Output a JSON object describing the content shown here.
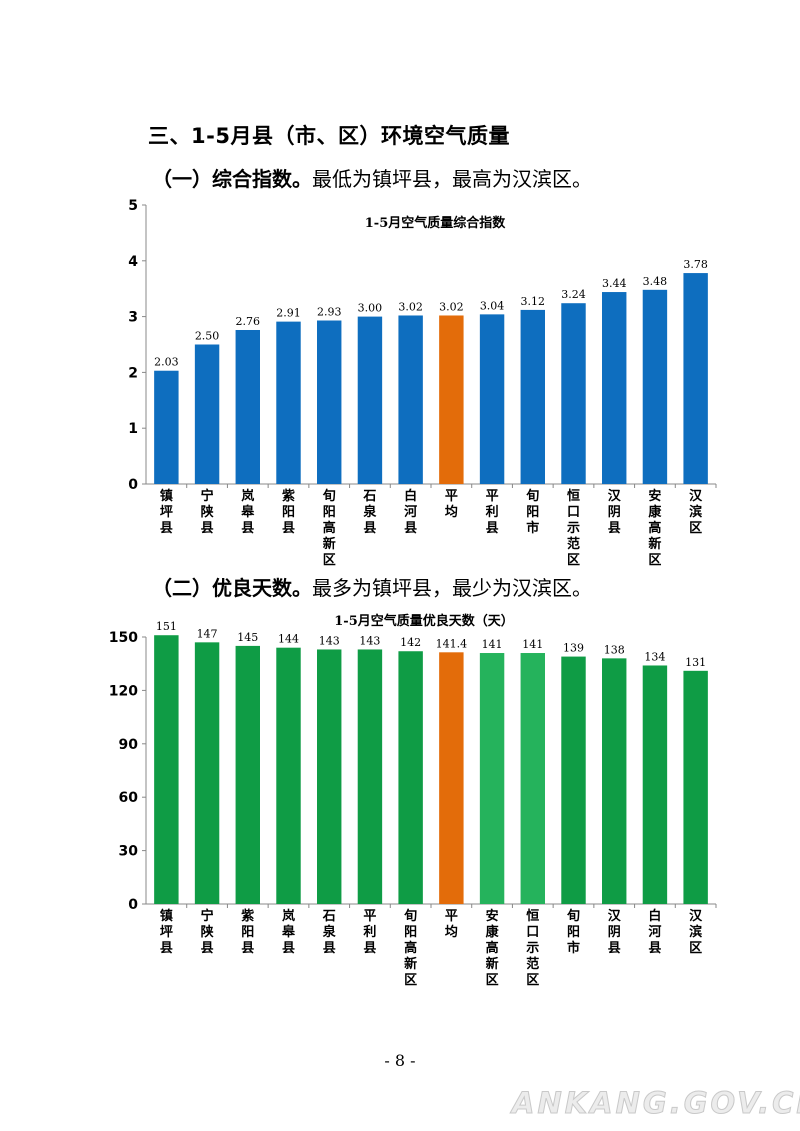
{
  "section_heading": "三、1-5月县（市、区）环境空气质量",
  "para1": {
    "bold": "（一）综合指数。",
    "text": "最低为镇坪县，最高为汉滨区。"
  },
  "para2": {
    "bold": "（二）优良天数。",
    "text": "最多为镇坪县，最少为汉滨区。"
  },
  "page_number": "- 8 -",
  "watermark": "ANKANG.GOV.CN",
  "colors": {
    "blue": "#0e6ebf",
    "orange": "#e36c0a",
    "green": "#0f9c45",
    "light_green": "#25b35c"
  },
  "chart_data": [
    {
      "type": "bar",
      "title": "1-5月空气质量综合指数",
      "categories": [
        "镇坪县",
        "宁陕县",
        "岚皋县",
        "紫阳县",
        "旬阳高新区",
        "石泉县",
        "白河县",
        "平均",
        "平利县",
        "旬阳市",
        "恒口示范区",
        "汉阴县",
        "安康高新区",
        "汉滨区"
      ],
      "values": [
        2.03,
        2.5,
        2.76,
        2.91,
        2.93,
        3.0,
        3.02,
        3.02,
        3.04,
        3.12,
        3.24,
        3.44,
        3.48,
        3.78
      ],
      "value_labels": [
        "2.03",
        "2.50",
        "2.76",
        "2.91",
        "2.93",
        "3.00",
        "3.02",
        "3.02",
        "3.04",
        "3.12",
        "3.24",
        "3.44",
        "3.48",
        "3.78"
      ],
      "ylim": [
        0,
        5
      ],
      "yticks": [
        "0",
        "1",
        "2",
        "3",
        "4",
        "5"
      ],
      "highlight": "平均",
      "bar_color": "#0e6ebf",
      "highlight_color": "#e36c0a",
      "grid": false
    },
    {
      "type": "bar",
      "title": "1-5月空气质量优良天数（天）",
      "categories": [
        "镇坪县",
        "宁陕县",
        "紫阳县",
        "岚皋县",
        "石泉县",
        "平利县",
        "旬阳高新区",
        "平均",
        "安康高新区",
        "恒口示范区",
        "旬阳市",
        "汉阴县",
        "白河县",
        "汉滨区"
      ],
      "values": [
        151,
        147,
        145,
        144,
        143,
        143,
        142,
        141.4,
        141,
        141,
        139,
        138,
        134,
        131
      ],
      "value_labels": [
        "151",
        "147",
        "145",
        "144",
        "143",
        "143",
        "142",
        "141.4",
        "141",
        "141",
        "139",
        "138",
        "134",
        "131"
      ],
      "ylim": [
        0,
        150
      ],
      "yticks": [
        "0",
        "30",
        "60",
        "90",
        "120",
        "150"
      ],
      "highlight": "平均",
      "bar_color": "#0f9c45",
      "highlight_color": "#e36c0a",
      "grid": false
    }
  ]
}
